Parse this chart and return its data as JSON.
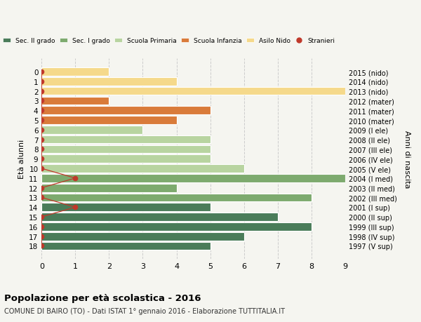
{
  "ages": [
    0,
    1,
    2,
    3,
    4,
    5,
    6,
    7,
    8,
    9,
    10,
    11,
    12,
    13,
    14,
    15,
    16,
    17,
    18
  ],
  "years": [
    "2015 (nido)",
    "2014 (nido)",
    "2013 (nido)",
    "2012 (mater)",
    "2011 (mater)",
    "2010 (mater)",
    "2009 (I ele)",
    "2008 (II ele)",
    "2007 (III ele)",
    "2006 (IV ele)",
    "2005 (V ele)",
    "2004 (I med)",
    "2003 (II med)",
    "2002 (III med)",
    "2001 (I sup)",
    "2000 (II sup)",
    "1999 (III sup)",
    "1998 (IV sup)",
    "1997 (V sup)"
  ],
  "bar_values": [
    2,
    4,
    9,
    2,
    5,
    4,
    3,
    5,
    5,
    5,
    6,
    9,
    4,
    8,
    5,
    7,
    8,
    6,
    5
  ],
  "bar_colors": [
    "#f5d98b",
    "#f5d98b",
    "#f5d98b",
    "#d97b3a",
    "#d97b3a",
    "#d97b3a",
    "#b8d4a0",
    "#b8d4a0",
    "#b8d4a0",
    "#b8d4a0",
    "#b8d4a0",
    "#7daa6e",
    "#7daa6e",
    "#7daa6e",
    "#4a7c59",
    "#4a7c59",
    "#4a7c59",
    "#4a7c59",
    "#4a7c59"
  ],
  "stranieri_x": [
    0,
    0,
    0,
    0,
    0,
    0,
    0,
    0,
    0,
    0,
    0,
    1,
    0,
    0,
    1,
    0,
    0,
    0,
    0
  ],
  "legend_labels": [
    "Sec. II grado",
    "Sec. I grado",
    "Scuola Primaria",
    "Scuola Infanzia",
    "Asilo Nido",
    "Stranieri"
  ],
  "legend_colors": [
    "#4a7c59",
    "#7daa6e",
    "#b8d4a0",
    "#d97b3a",
    "#f5d98b",
    "#c0392b"
  ],
  "title_main": "Popolazione per età scolastica - 2016",
  "title_sub": "COMUNE DI BAIRO (TO) - Dati ISTAT 1° gennaio 2016 - Elaborazione TUTTITALIA.IT",
  "ylabel_left": "Età alunni",
  "ylabel_right": "Anni di nascita",
  "xlim": [
    0,
    9
  ],
  "background_color": "#f5f5f0",
  "grid_color": "#cccccc",
  "stranieri_color": "#c0392b",
  "bar_edge_color": "white",
  "bar_linewidth": 0.8
}
